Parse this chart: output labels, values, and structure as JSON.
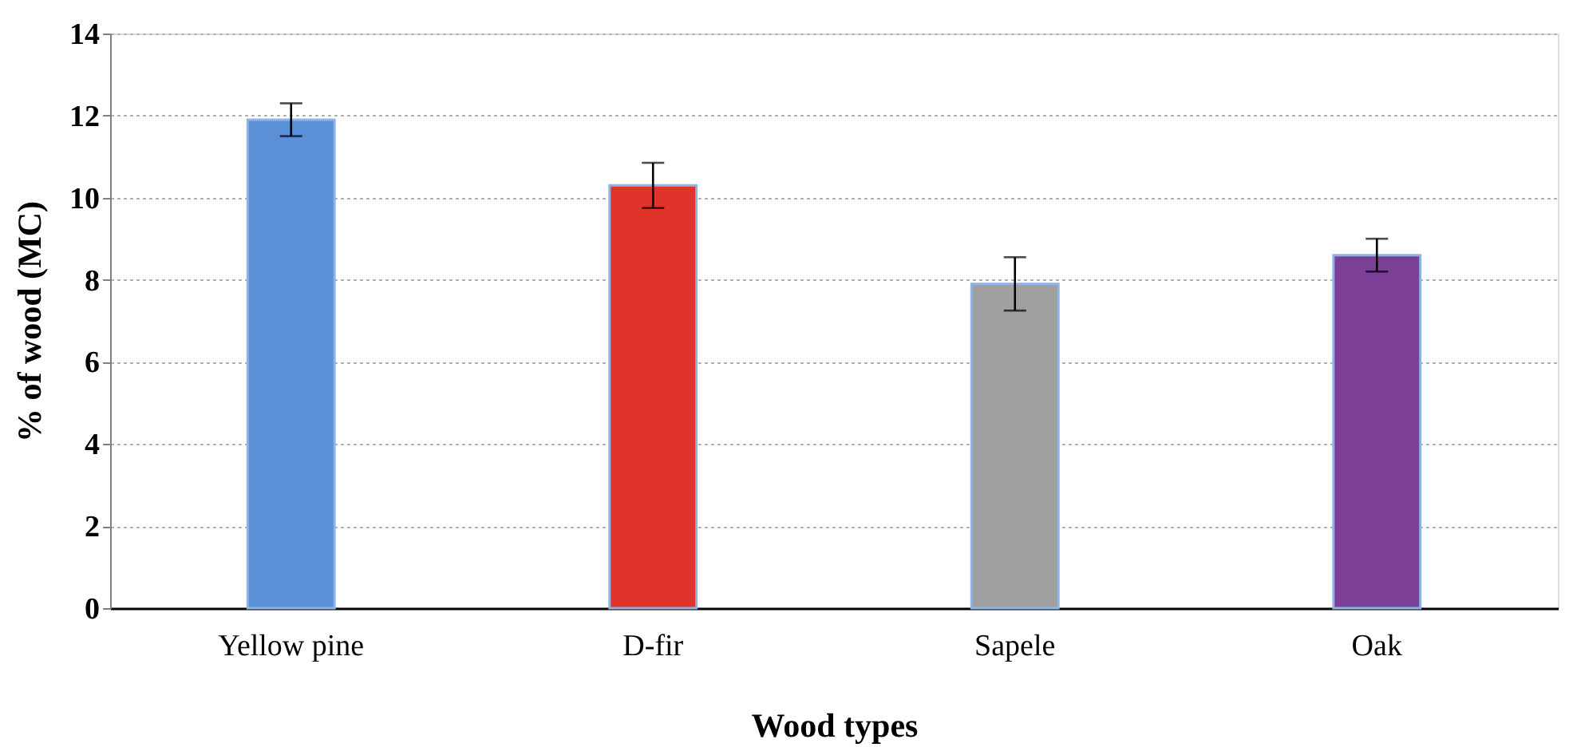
{
  "chart_data": {
    "type": "bar",
    "xlabel": "Wood types",
    "ylabel": "% of wood (MC)",
    "categories": [
      "Yellow pine",
      "D-fir",
      "Sapele",
      "Oak"
    ],
    "values": [
      11.9,
      10.3,
      7.9,
      8.6
    ],
    "colors": [
      "#5b8fd6",
      "#e0342b",
      "#a0a0a0",
      "#7b3f98"
    ],
    "errors": [
      0.4,
      0.55,
      0.65,
      0.4
    ],
    "ylim": [
      0,
      14
    ],
    "yticks": [
      0,
      2,
      4,
      6,
      8,
      10,
      12,
      14
    ],
    "grid": "y"
  }
}
